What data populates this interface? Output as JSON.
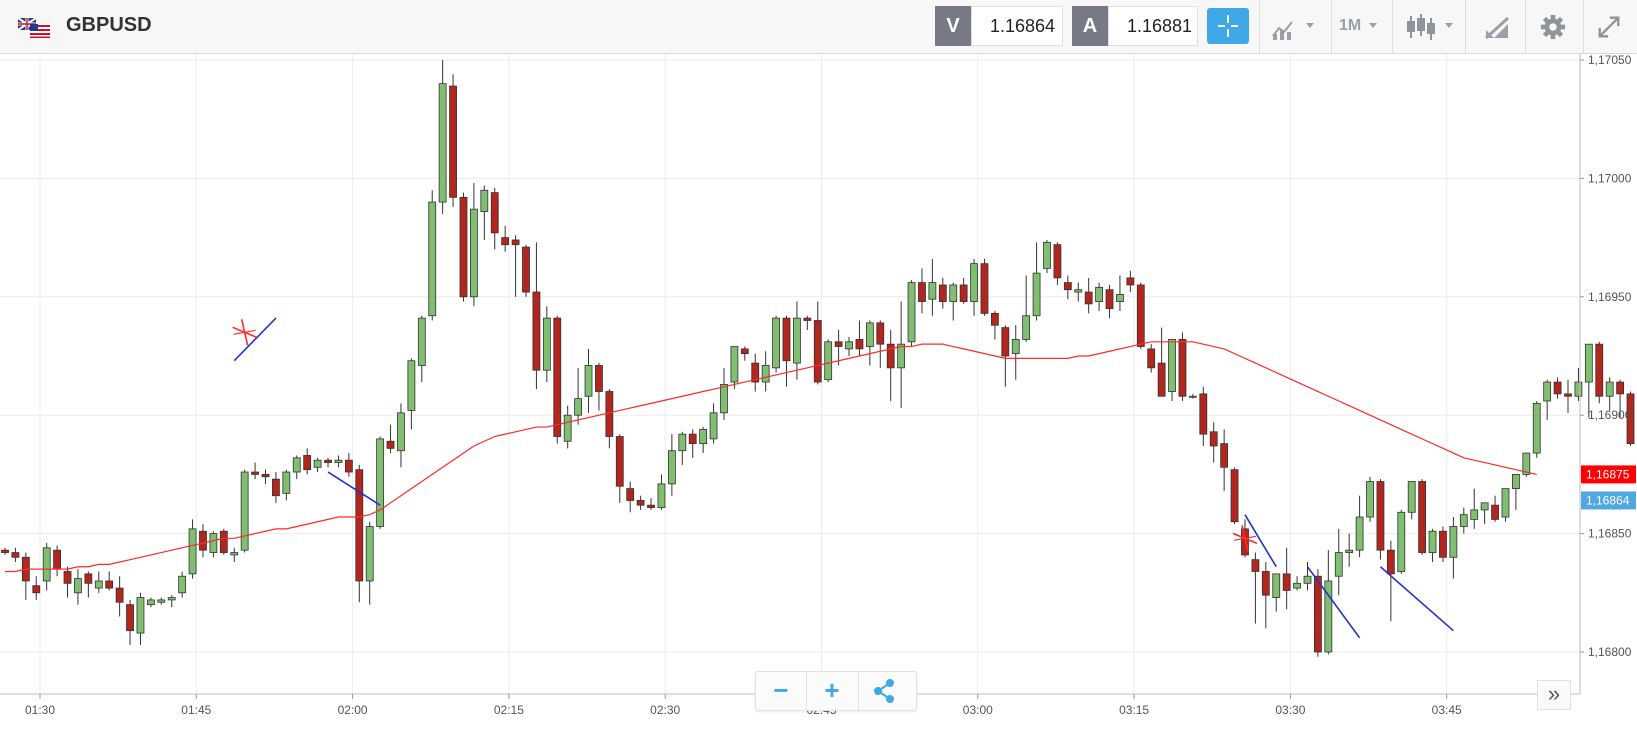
{
  "toolbar": {
    "symbol": "GBPUSD",
    "sell_tag": "V",
    "sell_price": "1.16864",
    "buy_tag": "A",
    "buy_price": "1.16881",
    "timeframe": "1M",
    "icons": [
      "uk-us-flag-icon",
      "crosshair-icon",
      "chart-style-icon",
      "timeframe-dropdown",
      "candlestick-icon",
      "drawing-tools-icon",
      "settings-gear-icon",
      "fullscreen-icon"
    ]
  },
  "colors": {
    "bull": "#7fbf6f",
    "bear": "#b3261e",
    "ma": "#ff2a2a",
    "accent": "#3fa9e8",
    "current_price_box": "#ff0000",
    "bid_price_box": "#4fa9e0"
  },
  "chart_data": {
    "type": "candlestick",
    "y_range": [
      1.16795,
      1.17052
    ],
    "y_ticks": [
      "1,17050",
      "1,17000",
      "1,16950",
      "1,16900",
      "1,16850",
      "1,16800"
    ],
    "x_ticks": [
      "01:30",
      "01:45",
      "02:00",
      "02:15",
      "02:30",
      "02:45",
      "03:00",
      "03:15",
      "03:30",
      "03:45"
    ],
    "price_labels": {
      "last": "1,16875",
      "bid": "1,16864"
    },
    "candles": [
      [
        1.16843,
        1.16844,
        1.16841,
        1.16842
      ],
      [
        1.16842,
        1.16844,
        1.16838,
        1.1684
      ],
      [
        1.1684,
        1.16842,
        1.16822,
        1.1683
      ],
      [
        1.16828,
        1.16832,
        1.16822,
        1.16825
      ],
      [
        1.1683,
        1.16846,
        1.16826,
        1.16844
      ],
      [
        1.16843,
        1.16845,
        1.16832,
        1.16835
      ],
      [
        1.16834,
        1.16836,
        1.16823,
        1.16829
      ],
      [
        1.16825,
        1.16835,
        1.1682,
        1.16831
      ],
      [
        1.16833,
        1.16834,
        1.16823,
        1.16829
      ],
      [
        1.16827,
        1.16834,
        1.16825,
        1.1683
      ],
      [
        1.1683,
        1.16834,
        1.16826,
        1.16827
      ],
      [
        1.16827,
        1.16832,
        1.16815,
        1.16821
      ],
      [
        1.1682,
        1.16822,
        1.16803,
        1.16809
      ],
      [
        1.16808,
        1.16825,
        1.16803,
        1.16823
      ],
      [
        1.1682,
        1.16823,
        1.16819,
        1.16822
      ],
      [
        1.16821,
        1.16823,
        1.1682,
        1.16822
      ],
      [
        1.16822,
        1.16824,
        1.16819,
        1.16823
      ],
      [
        1.16825,
        1.16834,
        1.16823,
        1.16832
      ],
      [
        1.16833,
        1.16856,
        1.16831,
        1.16852
      ],
      [
        1.16851,
        1.16854,
        1.1684,
        1.16843
      ],
      [
        1.16842,
        1.16851,
        1.1684,
        1.1685
      ],
      [
        1.16851,
        1.16852,
        1.16841,
        1.16842
      ],
      [
        1.16841,
        1.16844,
        1.16838,
        1.16842
      ],
      [
        1.16843,
        1.16877,
        1.16842,
        1.16876
      ],
      [
        1.16876,
        1.1688,
        1.16873,
        1.16875
      ],
      [
        1.16875,
        1.16877,
        1.16871,
        1.16874
      ],
      [
        1.16873,
        1.16876,
        1.16863,
        1.16866
      ],
      [
        1.16867,
        1.16877,
        1.16864,
        1.16876
      ],
      [
        1.16876,
        1.16883,
        1.16873,
        1.16882
      ],
      [
        1.16883,
        1.16886,
        1.16875,
        1.16877
      ],
      [
        1.16878,
        1.16882,
        1.16876,
        1.16881
      ],
      [
        1.16881,
        1.16882,
        1.16878,
        1.1688
      ],
      [
        1.1688,
        1.16883,
        1.16878,
        1.16881
      ],
      [
        1.16881,
        1.16884,
        1.16874,
        1.16876
      ],
      [
        1.16877,
        1.16879,
        1.16821,
        1.1683
      ],
      [
        1.1683,
        1.16855,
        1.1682,
        1.16853
      ],
      [
        1.16853,
        1.16891,
        1.16852,
        1.1689
      ],
      [
        1.16889,
        1.16896,
        1.16884,
        1.16886
      ],
      [
        1.16885,
        1.16905,
        1.16878,
        1.16901
      ],
      [
        1.16902,
        1.16924,
        1.16894,
        1.16923
      ],
      [
        1.16921,
        1.16942,
        1.16914,
        1.16941
      ],
      [
        1.16942,
        1.16995,
        1.1694,
        1.1699
      ],
      [
        1.1699,
        1.1705,
        1.16985,
        1.1704
      ],
      [
        1.17039,
        1.17044,
        1.16988,
        1.16992
      ],
      [
        1.16992,
        1.16994,
        1.16948,
        1.1695
      ],
      [
        1.1695,
        1.16998,
        1.16946,
        1.16987
      ],
      [
        1.16986,
        1.16997,
        1.16974,
        1.16995
      ],
      [
        1.16994,
        1.16996,
        1.1697,
        1.16977
      ],
      [
        1.16975,
        1.1698,
        1.16969,
        1.16972
      ],
      [
        1.16974,
        1.16976,
        1.1695,
        1.16972
      ],
      [
        1.16971,
        1.16972,
        1.1695,
        1.16952
      ],
      [
        1.16952,
        1.16973,
        1.16911,
        1.16919
      ],
      [
        1.16919,
        1.16946,
        1.16914,
        1.16941
      ],
      [
        1.16941,
        1.16942,
        1.16888,
        1.16891
      ],
      [
        1.16889,
        1.16904,
        1.16886,
        1.169
      ],
      [
        1.169,
        1.1692,
        1.16896,
        1.16907
      ],
      [
        1.16908,
        1.16928,
        1.16901,
        1.16921
      ],
      [
        1.16921,
        1.16922,
        1.16902,
        1.1691
      ],
      [
        1.1691,
        1.16911,
        1.16886,
        1.16891
      ],
      [
        1.16891,
        1.16892,
        1.16863,
        1.1687
      ],
      [
        1.16869,
        1.16872,
        1.16859,
        1.16864
      ],
      [
        1.16864,
        1.16866,
        1.1686,
        1.16862
      ],
      [
        1.16862,
        1.16865,
        1.1686,
        1.16861
      ],
      [
        1.16861,
        1.16875,
        1.1686,
        1.16871
      ],
      [
        1.16871,
        1.16892,
        1.16866,
        1.16885
      ],
      [
        1.16885,
        1.16893,
        1.16879,
        1.16892
      ],
      [
        1.16892,
        1.16894,
        1.16882,
        1.16888
      ],
      [
        1.16888,
        1.16895,
        1.16884,
        1.16894
      ],
      [
        1.1689,
        1.16905,
        1.16888,
        1.16901
      ],
      [
        1.16901,
        1.1692,
        1.16898,
        1.16913
      ],
      [
        1.16914,
        1.16929,
        1.16911,
        1.16929
      ],
      [
        1.16928,
        1.16929,
        1.16923,
        1.16926
      ],
      [
        1.16922,
        1.16926,
        1.1691,
        1.16914
      ],
      [
        1.16914,
        1.16927,
        1.1691,
        1.16921
      ],
      [
        1.1692,
        1.16942,
        1.16918,
        1.16941
      ],
      [
        1.16941,
        1.16942,
        1.16912,
        1.16923
      ],
      [
        1.16922,
        1.16948,
        1.16915,
        1.16941
      ],
      [
        1.16941,
        1.16942,
        1.16936,
        1.1694
      ],
      [
        1.1694,
        1.16948,
        1.16913,
        1.16914
      ],
      [
        1.16915,
        1.16932,
        1.16914,
        1.16931
      ],
      [
        1.16931,
        1.16936,
        1.16921,
        1.16929
      ],
      [
        1.16928,
        1.16933,
        1.16925,
        1.16931
      ],
      [
        1.16932,
        1.1694,
        1.16925,
        1.16928
      ],
      [
        1.16929,
        1.1694,
        1.16921,
        1.16939
      ],
      [
        1.16939,
        1.1694,
        1.1692,
        1.1693
      ],
      [
        1.1693,
        1.16936,
        1.16906,
        1.1692
      ],
      [
        1.1692,
        1.16948,
        1.16903,
        1.1693
      ],
      [
        1.16931,
        1.16957,
        1.16929,
        1.16956
      ],
      [
        1.16956,
        1.16962,
        1.16943,
        1.16948
      ],
      [
        1.16949,
        1.16966,
        1.16942,
        1.16956
      ],
      [
        1.16955,
        1.16958,
        1.16945,
        1.16948
      ],
      [
        1.16948,
        1.16956,
        1.1694,
        1.16955
      ],
      [
        1.16955,
        1.16958,
        1.16947,
        1.16948
      ],
      [
        1.16948,
        1.16966,
        1.16942,
        1.16964
      ],
      [
        1.16964,
        1.16966,
        1.16942,
        1.16943
      ],
      [
        1.16943,
        1.16944,
        1.16932,
        1.16938
      ],
      [
        1.16937,
        1.16938,
        1.16912,
        1.16925
      ],
      [
        1.16926,
        1.16938,
        1.16915,
        1.16932
      ],
      [
        1.16932,
        1.16959,
        1.16931,
        1.16942
      ],
      [
        1.16942,
        1.16973,
        1.1694,
        1.1696
      ],
      [
        1.16962,
        1.16974,
        1.1696,
        1.16973
      ],
      [
        1.16972,
        1.16973,
        1.16955,
        1.16958
      ],
      [
        1.16956,
        1.16959,
        1.16949,
        1.16953
      ],
      [
        1.16952,
        1.16956,
        1.16948,
        1.16953
      ],
      [
        1.16952,
        1.16958,
        1.16943,
        1.16947
      ],
      [
        1.16948,
        1.16956,
        1.16944,
        1.16954
      ],
      [
        1.16953,
        1.16955,
        1.16941,
        1.16945
      ],
      [
        1.16948,
        1.16959,
        1.16944,
        1.16951
      ],
      [
        1.16958,
        1.16961,
        1.16952,
        1.16955
      ],
      [
        1.16955,
        1.16956,
        1.16928,
        1.16929
      ],
      [
        1.16928,
        1.1693,
        1.16918,
        1.1692
      ],
      [
        1.16922,
        1.16937,
        1.16908,
        1.16908
      ],
      [
        1.1691,
        1.16932,
        1.16906,
        1.16932
      ],
      [
        1.16932,
        1.16935,
        1.16906,
        1.16908
      ],
      [
        1.16908,
        1.16909,
        1.16907,
        1.16908
      ],
      [
        1.16909,
        1.16912,
        1.16887,
        1.16892
      ],
      [
        1.16893,
        1.16897,
        1.1688,
        1.16887
      ],
      [
        1.16888,
        1.16894,
        1.16868,
        1.16878
      ],
      [
        1.16877,
        1.16878,
        1.16854,
        1.16855
      ],
      [
        1.16852,
        1.16856,
        1.1684,
        1.16841
      ],
      [
        1.16839,
        1.16842,
        1.16812,
        1.16834
      ],
      [
        1.16834,
        1.16838,
        1.1681,
        1.16824
      ],
      [
        1.16823,
        1.16832,
        1.16817,
        1.16833
      ],
      [
        1.16833,
        1.16844,
        1.16818,
        1.16826
      ],
      [
        1.16827,
        1.16832,
        1.16826,
        1.16829
      ],
      [
        1.16829,
        1.16838,
        1.16826,
        1.16832
      ],
      [
        1.16832,
        1.16835,
        1.16798,
        1.168
      ],
      [
        1.168,
        1.16843,
        1.16799,
        1.1683
      ],
      [
        1.16832,
        1.16852,
        1.16824,
        1.16842
      ],
      [
        1.16842,
        1.1685,
        1.16836,
        1.16843
      ],
      [
        1.16843,
        1.16866,
        1.1684,
        1.16857
      ],
      [
        1.16857,
        1.16874,
        1.16855,
        1.16872
      ],
      [
        1.16872,
        1.16873,
        1.16839,
        1.16843
      ],
      [
        1.16843,
        1.16847,
        1.16813,
        1.16833
      ],
      [
        1.16834,
        1.1686,
        1.16833,
        1.16859
      ],
      [
        1.16859,
        1.16872,
        1.16856,
        1.16872
      ],
      [
        1.16872,
        1.16873,
        1.16841,
        1.16842
      ],
      [
        1.16842,
        1.16852,
        1.16838,
        1.16851
      ],
      [
        1.16851,
        1.16853,
        1.16838,
        1.1684
      ],
      [
        1.1684,
        1.16857,
        1.16831,
        1.16853
      ],
      [
        1.16853,
        1.16861,
        1.1685,
        1.16858
      ],
      [
        1.16856,
        1.16869,
        1.16852,
        1.1686
      ],
      [
        1.1686,
        1.16863,
        1.16854,
        1.16863
      ],
      [
        1.16862,
        1.16866,
        1.16855,
        1.16856
      ],
      [
        1.16857,
        1.16869,
        1.16855,
        1.16869
      ],
      [
        1.16869,
        1.16874,
        1.1686,
        1.16875
      ],
      [
        1.16875,
        1.16883,
        1.16874,
        1.16884
      ],
      [
        1.16884,
        1.16906,
        1.16882,
        1.16905
      ],
      [
        1.16906,
        1.16915,
        1.16898,
        1.16914
      ],
      [
        1.16914,
        1.16916,
        1.16907,
        1.16909
      ],
      [
        1.16909,
        1.16915,
        1.16901,
        1.16908
      ],
      [
        1.16908,
        1.1692,
        1.16906,
        1.16914
      ],
      [
        1.16914,
        1.1693,
        1.16899,
        1.1693
      ],
      [
        1.1693,
        1.16931,
        1.16905,
        1.16908
      ],
      [
        1.16908,
        1.16916,
        1.16902,
        1.16914
      ],
      [
        1.16914,
        1.16915,
        1.16899,
        1.16909
      ],
      [
        1.16909,
        1.1691,
        1.16887,
        1.16888
      ]
    ],
    "ma_series": [
      1.16834,
      1.16834,
      1.16835,
      1.16835,
      1.16835,
      1.16835,
      1.16835,
      1.16836,
      1.16836,
      1.16837,
      1.16837,
      1.16838,
      1.16839,
      1.1684,
      1.16841,
      1.16842,
      1.16843,
      1.16844,
      1.16845,
      1.16846,
      1.16847,
      1.16848,
      1.16848,
      1.16849,
      1.1685,
      1.16851,
      1.16852,
      1.16852,
      1.16853,
      1.16854,
      1.16855,
      1.16856,
      1.16857,
      1.16857,
      1.16857,
      1.16858,
      1.1686,
      1.16863,
      1.16866,
      1.16869,
      1.16872,
      1.16875,
      1.16878,
      1.16881,
      1.16884,
      1.16887,
      1.16889,
      1.16891,
      1.16892,
      1.16893,
      1.16894,
      1.16895,
      1.16895,
      1.16896,
      1.16897,
      1.16898,
      1.16899,
      1.169,
      1.16901,
      1.16902,
      1.16903,
      1.16904,
      1.16905,
      1.16906,
      1.16907,
      1.16908,
      1.16909,
      1.1691,
      1.16911,
      1.16912,
      1.16913,
      1.16914,
      1.16915,
      1.16916,
      1.16917,
      1.16918,
      1.16919,
      1.1692,
      1.16921,
      1.16922,
      1.16923,
      1.16924,
      1.16925,
      1.16926,
      1.16927,
      1.16928,
      1.16929,
      1.16929,
      1.1693,
      1.1693,
      1.1693,
      1.16929,
      1.16928,
      1.16927,
      1.16926,
      1.16925,
      1.16924,
      1.16924,
      1.16924,
      1.16924,
      1.16924,
      1.16924,
      1.16924,
      1.16925,
      1.16925,
      1.16926,
      1.16927,
      1.16928,
      1.16929,
      1.1693,
      1.16931,
      1.16931,
      1.16931,
      1.16931,
      1.16931,
      1.1693,
      1.16929,
      1.16928,
      1.16926,
      1.16924,
      1.16922,
      1.1692,
      1.16918,
      1.16916,
      1.16914,
      1.16912,
      1.1691,
      1.16908,
      1.16906,
      1.16904,
      1.16902,
      1.169,
      1.16898,
      1.16896,
      1.16894,
      1.16892,
      1.1689,
      1.16888,
      1.16886,
      1.16884,
      1.16882,
      1.16881,
      1.1688,
      1.16879,
      1.16878,
      1.16877,
      1.16876,
      1.16875
    ]
  },
  "annotations": {
    "lines": [
      [
        22,
        1.16923,
        26,
        1.16941
      ],
      [
        31,
        1.16876,
        36,
        1.16862
      ],
      [
        119,
        1.16858,
        122,
        1.16836
      ],
      [
        125,
        1.16836,
        130,
        1.16806
      ],
      [
        132,
        1.16836,
        139,
        1.16809
      ]
    ],
    "cross_marks": [
      [
        23,
        1.16935
      ],
      [
        119,
        1.16848
      ]
    ]
  },
  "zoom": {
    "minus": "−",
    "plus": "+"
  },
  "scroll_right": "»"
}
